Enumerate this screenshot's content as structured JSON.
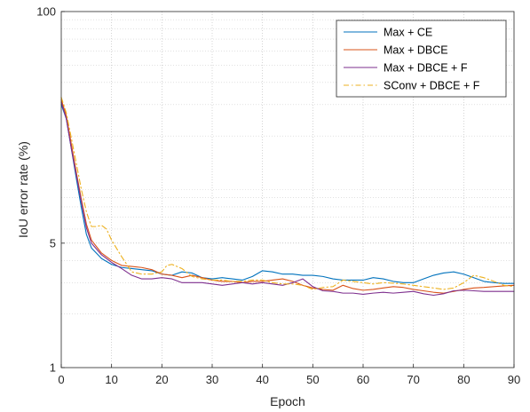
{
  "chart_data": {
    "type": "line",
    "xlabel": "Epoch",
    "ylabel": "IoU error rate (%)",
    "xlim": [
      0,
      90
    ],
    "ylim": [
      1,
      100
    ],
    "yscale": "log",
    "grid": "major and minor, dotted",
    "legend_position": "top-right",
    "x_ticks": [
      0,
      10,
      20,
      30,
      40,
      50,
      60,
      70,
      80,
      90
    ],
    "x_tick_labels": [
      "0",
      "10",
      "20",
      "30",
      "40",
      "50",
      "60",
      "70",
      "80",
      "90"
    ],
    "y_ticks": [
      1,
      5,
      100
    ],
    "y_tick_labels": [
      "1",
      "5",
      "100"
    ],
    "series": [
      {
        "name": "Max + CE",
        "color": "#0072BD",
        "style": "solid",
        "x": [
          0,
          1,
          2,
          3,
          4,
          5,
          6,
          8,
          10,
          12,
          14,
          16,
          18,
          20,
          22,
          24,
          26,
          28,
          30,
          32,
          34,
          36,
          38,
          40,
          42,
          44,
          46,
          48,
          50,
          52,
          54,
          56,
          58,
          60,
          62,
          64,
          66,
          68,
          70,
          72,
          74,
          76,
          78,
          80,
          82,
          84,
          86,
          88,
          90
        ],
        "y": [
          30.0,
          25.0,
          17.0,
          11.5,
          7.9,
          5.6,
          4.7,
          4.1,
          3.8,
          3.65,
          3.6,
          3.55,
          3.5,
          3.35,
          3.3,
          3.45,
          3.4,
          3.2,
          3.15,
          3.2,
          3.15,
          3.1,
          3.25,
          3.5,
          3.45,
          3.35,
          3.35,
          3.3,
          3.3,
          3.25,
          3.15,
          3.1,
          3.1,
          3.1,
          3.2,
          3.15,
          3.05,
          3.0,
          3.0,
          3.15,
          3.3,
          3.4,
          3.45,
          3.35,
          3.2,
          3.05,
          3.0,
          2.97,
          2.97
        ]
      },
      {
        "name": "Max + DBCE",
        "color": "#D95319",
        "style": "solid",
        "x": [
          0,
          1,
          2,
          3,
          4,
          5,
          6,
          8,
          10,
          12,
          14,
          16,
          18,
          20,
          22,
          24,
          26,
          28,
          30,
          32,
          34,
          36,
          38,
          40,
          42,
          44,
          46,
          48,
          50,
          52,
          54,
          56,
          58,
          60,
          62,
          64,
          66,
          68,
          70,
          72,
          74,
          76,
          78,
          80,
          82,
          84,
          86,
          88,
          90
        ],
        "y": [
          32.0,
          26.0,
          18.0,
          12.5,
          8.8,
          6.4,
          5.2,
          4.4,
          4.0,
          3.75,
          3.7,
          3.65,
          3.55,
          3.35,
          3.3,
          3.2,
          3.3,
          3.2,
          3.1,
          3.05,
          3.05,
          3.0,
          3.05,
          3.05,
          3.1,
          3.15,
          3.05,
          2.9,
          2.8,
          2.75,
          2.72,
          2.9,
          2.78,
          2.72,
          2.75,
          2.8,
          2.85,
          2.82,
          2.75,
          2.7,
          2.65,
          2.62,
          2.68,
          2.75,
          2.8,
          2.82,
          2.85,
          2.88,
          2.9
        ]
      },
      {
        "name": "Max + DBCE + F",
        "color": "#7E2F8E",
        "style": "solid",
        "x": [
          0,
          1,
          2,
          3,
          4,
          5,
          6,
          8,
          10,
          12,
          14,
          16,
          18,
          20,
          22,
          24,
          26,
          28,
          30,
          32,
          34,
          36,
          38,
          40,
          42,
          44,
          46,
          48,
          50,
          52,
          54,
          56,
          58,
          60,
          62,
          64,
          66,
          68,
          70,
          72,
          74,
          76,
          78,
          80,
          82,
          84,
          86,
          88,
          90
        ],
        "y": [
          31.0,
          25.0,
          17.0,
          12.0,
          8.5,
          6.1,
          5.0,
          4.3,
          3.9,
          3.6,
          3.3,
          3.15,
          3.15,
          3.2,
          3.15,
          3.0,
          3.0,
          3.0,
          2.95,
          2.9,
          2.95,
          3.0,
          2.95,
          3.0,
          2.95,
          2.9,
          3.0,
          3.15,
          2.85,
          2.7,
          2.68,
          2.62,
          2.62,
          2.58,
          2.62,
          2.65,
          2.62,
          2.65,
          2.68,
          2.6,
          2.55,
          2.6,
          2.7,
          2.72,
          2.7,
          2.68,
          2.68,
          2.68,
          2.68
        ]
      },
      {
        "name": "SConv + DBCE + F",
        "color": "#EDB120",
        "style": "dashdot",
        "x": [
          0,
          1,
          2,
          3,
          4,
          5,
          6,
          7,
          8,
          9,
          10,
          12,
          14,
          16,
          18,
          20,
          21,
          22,
          24,
          26,
          28,
          30,
          32,
          34,
          36,
          38,
          40,
          42,
          44,
          46,
          48,
          50,
          52,
          54,
          56,
          58,
          60,
          62,
          64,
          66,
          68,
          70,
          72,
          74,
          76,
          78,
          80,
          82,
          84,
          86,
          88,
          90
        ],
        "y": [
          33.0,
          27.0,
          19.5,
          14.0,
          10.0,
          7.5,
          6.2,
          6.2,
          6.3,
          6.0,
          5.2,
          4.2,
          3.45,
          3.35,
          3.35,
          3.45,
          3.75,
          3.8,
          3.6,
          3.25,
          3.15,
          3.1,
          3.1,
          3.05,
          3.05,
          3.1,
          3.1,
          3.0,
          2.95,
          2.95,
          2.9,
          2.75,
          2.82,
          2.85,
          3.1,
          3.05,
          3.0,
          2.95,
          3.0,
          2.98,
          2.95,
          2.9,
          2.85,
          2.8,
          2.75,
          2.8,
          3.0,
          3.3,
          3.2,
          3.05,
          2.9,
          2.85
        ]
      }
    ]
  }
}
